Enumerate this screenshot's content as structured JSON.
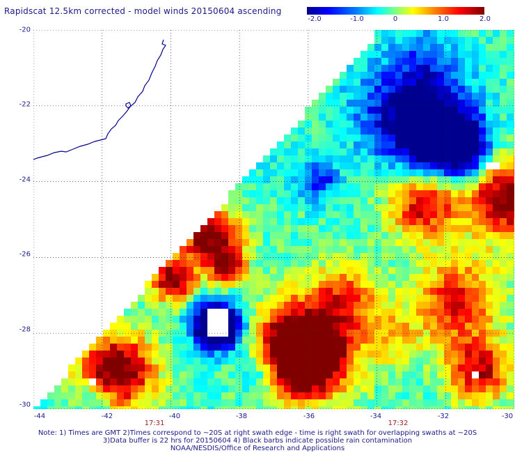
{
  "title": "Rapidscat 12.5km corrected - model winds 20150604 ascending",
  "colorbar": {
    "labels": [
      "-2.0",
      "-1.0",
      "0",
      "1.0",
      "2.0"
    ],
    "range": [
      -2.0,
      2.0
    ],
    "colors": [
      "#00008f",
      "#0000ff",
      "#0080ff",
      "#00ffff",
      "#80ff80",
      "#ffff00",
      "#ff8000",
      "#ff0000",
      "#800000"
    ]
  },
  "map": {
    "lat_labels": [
      "-20",
      "-22",
      "-24",
      "-26",
      "-28",
      "-30"
    ],
    "lon_labels": [
      "-44",
      "-42",
      "-40",
      "-38",
      "-36",
      "-34",
      "-32",
      "-30"
    ],
    "lat_range": [
      -30,
      -20
    ],
    "lon_range": [
      -44,
      -30
    ],
    "coast_color": "#00008f",
    "missing_color": "#ffffff"
  },
  "times": {
    "t1": "17:31",
    "t2": "17:32"
  },
  "notes": {
    "line1": "Note: 1) Times are GMT 2)Times correspond to ~20S at right swath edge - time is right swath for overlapping swaths at ~20S",
    "line2": "3)Data buffer is 22 hrs for 20150604 4) Black barbs indicate possible rain contamination",
    "line3": "NOAA/NESDIS/Office of Research and Applications"
  }
}
